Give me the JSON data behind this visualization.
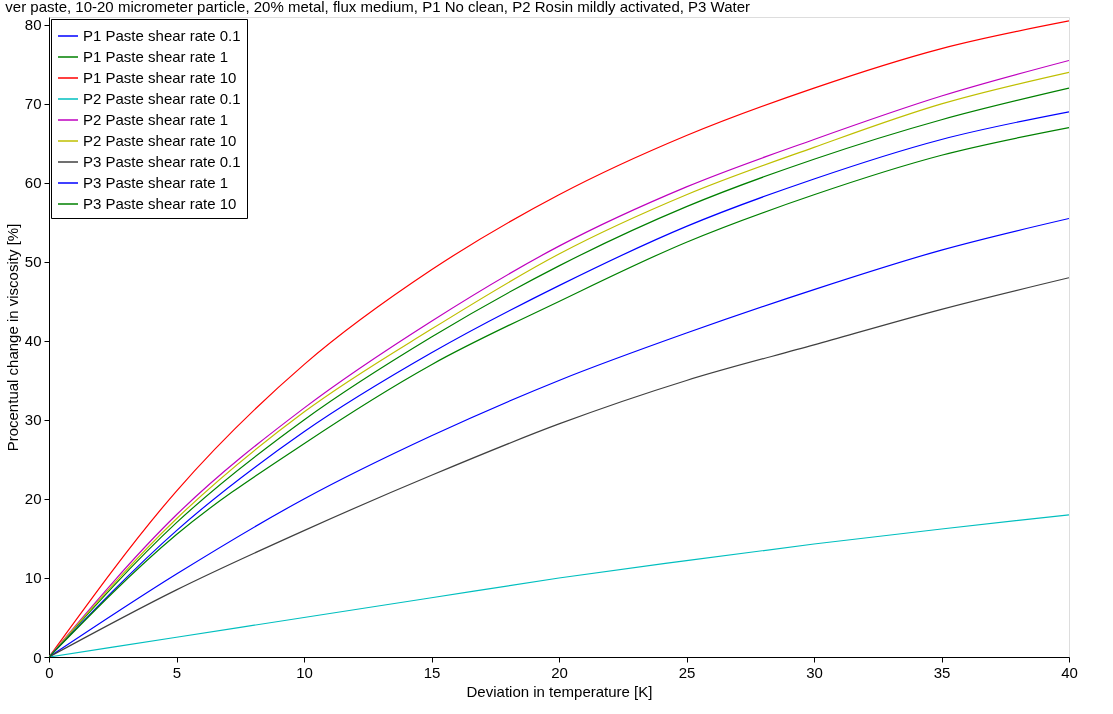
{
  "chart_data": {
    "type": "line",
    "title": "ver paste, 10-20 micrometer particle, 20% metal, flux medium, P1 No clean, P2 Rosin mildly activated, P3 Water",
    "xlabel": "Deviation in temperature [K]",
    "ylabel": "Procentual change in viscosity [%]",
    "x": [
      0,
      5,
      10,
      15,
      20,
      25,
      30,
      35,
      40
    ],
    "series": [
      {
        "name": "P1 Paste shear rate 0.1",
        "color": "#0000ff",
        "values": [
          0,
          10.5,
          20,
          28,
          35,
          41,
          46.5,
          51.5,
          55.5
        ]
      },
      {
        "name": "P1 Paste shear rate 1",
        "color": "#008000",
        "values": [
          0,
          17,
          30,
          40.5,
          49.5,
          57,
          63,
          68,
          72
        ]
      },
      {
        "name": "P1 Paste shear rate 10",
        "color": "#ff0000",
        "values": [
          0,
          21,
          37,
          49,
          58.5,
          66,
          72,
          77,
          80.5
        ]
      },
      {
        "name": "P2 Paste shear rate 0.1",
        "color": "#00bfbf",
        "values": [
          0,
          2.5,
          5,
          7.5,
          10,
          12.2,
          14.3,
          16.2,
          18
        ]
      },
      {
        "name": "P2 Paste shear rate 1",
        "color": "#bf00bf",
        "values": [
          0,
          18,
          31.5,
          42.5,
          52,
          59.5,
          65.5,
          71,
          75.5
        ]
      },
      {
        "name": "P2 Paste shear rate 10",
        "color": "#bfbf00",
        "values": [
          0,
          17.5,
          31,
          41.5,
          51,
          58.5,
          64.5,
          70,
          74
        ]
      },
      {
        "name": "P3 Paste shear rate 0.1",
        "color": "#404040",
        "values": [
          0,
          8.5,
          16,
          23,
          29.5,
          35,
          39.5,
          44,
          48
        ]
      },
      {
        "name": "P3 Paste shear rate 1",
        "color": "#0000ff",
        "values": [
          0,
          16,
          28.5,
          38.5,
          47,
          54.5,
          60.5,
          65.5,
          69
        ]
      },
      {
        "name": "P3 Paste shear rate 10",
        "color": "#008000",
        "values": [
          0,
          15.5,
          27,
          37,
          45,
          52.5,
          58.5,
          63.5,
          67
        ]
      }
    ],
    "xlim": [
      0,
      40
    ],
    "xticks": [
      0,
      5,
      10,
      15,
      20,
      25,
      30,
      35,
      40
    ],
    "ylim": [
      0,
      81
    ],
    "yticks": [
      0,
      10,
      20,
      30,
      40,
      50,
      60,
      70,
      80
    ],
    "legend": "top left",
    "grid": false,
    "line_style": "solid",
    "marker": "none"
  }
}
